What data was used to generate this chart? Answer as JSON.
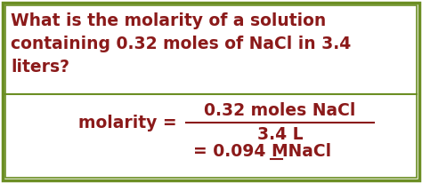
{
  "bg_color": "#ffffff",
  "outer_border_color": "#6b8e23",
  "text_color": "#8b1a1a",
  "question_text_line1": "What is the molarity of a solution",
  "question_text_line2": "containing 0.32 moles of NaCl in 3.4",
  "question_text_line3": "liters?",
  "numerator": "0.32 moles NaCl",
  "denominator": "3.4 L",
  "molarity_label": "molarity = ",
  "result_prefix": "= 0.094 ",
  "result_M": "M",
  "result_suffix": " NaCl",
  "font_size_question": 13.5,
  "font_size_eq": 13.5,
  "fig_width": 4.74,
  "fig_height": 2.06,
  "dpi": 100
}
